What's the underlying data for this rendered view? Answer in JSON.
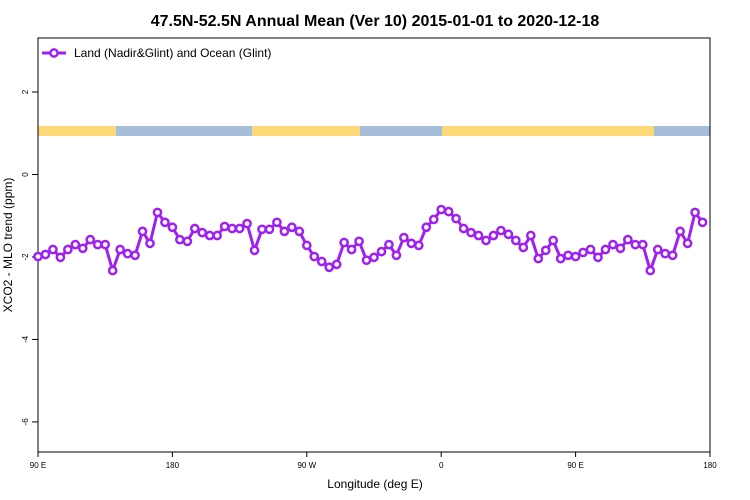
{
  "chart_data": {
    "type": "line",
    "title": "47.5N-52.5N Annual Mean (Ver 10)   2015-01-01 to 2020-12-18",
    "x_label": "Longitude (deg E)",
    "y_label": "XCO2 - MLO trend (ppm)",
    "legend": "top-left",
    "x": [
      90,
      95,
      100,
      105,
      110,
      115,
      120,
      125,
      130,
      135,
      140,
      145,
      150,
      155,
      160,
      165,
      170,
      175,
      180,
      185,
      190,
      195,
      200,
      205,
      210,
      215,
      220,
      225,
      230,
      235,
      240,
      245,
      250,
      255,
      260,
      265,
      270,
      275,
      280,
      285,
      290,
      295,
      300,
      305,
      310,
      315,
      320,
      325,
      330,
      335,
      340,
      345,
      350,
      355,
      360,
      365,
      370,
      375,
      380,
      385,
      390,
      395,
      400,
      405,
      410,
      415,
      420,
      425,
      430,
      435,
      440,
      445,
      450,
      455,
      460,
      465,
      470,
      475,
      480,
      485,
      490,
      495,
      500,
      505,
      510,
      515,
      520,
      525,
      530,
      535
    ],
    "series": [
      {
        "name": "Land (Nadir&Glint) and Ocean (Glint)",
        "color": "#a020f0",
        "values": [
          -1.99,
          -1.94,
          -1.82,
          -2.01,
          -1.82,
          -1.7,
          -1.79,
          -1.58,
          -1.7,
          -1.7,
          -2.33,
          -1.82,
          -1.92,
          -1.96,
          -1.38,
          -1.67,
          -0.92,
          -1.16,
          -1.28,
          -1.58,
          -1.62,
          -1.31,
          -1.41,
          -1.48,
          -1.48,
          -1.26,
          -1.31,
          -1.31,
          -1.19,
          -1.84,
          -1.33,
          -1.33,
          -1.16,
          -1.38,
          -1.28,
          -1.38,
          -1.72,
          -1.99,
          -2.11,
          -2.25,
          -2.18,
          -1.65,
          -1.82,
          -1.62,
          -2.08,
          -2.01,
          -1.87,
          -1.7,
          -1.96,
          -1.53,
          -1.67,
          -1.72,
          -1.28,
          -1.09,
          -0.85,
          -0.9,
          -1.07,
          -1.31,
          -1.41,
          -1.48,
          -1.6,
          -1.48,
          -1.36,
          -1.45,
          -1.6,
          -1.77,
          -1.48,
          -2.04,
          -1.84,
          -1.6,
          -2.04,
          -1.96,
          -1.99,
          -1.89,
          -1.82,
          -2.01,
          -1.82,
          -1.7,
          -1.79,
          -1.58,
          -1.7,
          -1.7,
          -2.33,
          -1.82,
          -1.92,
          -1.96,
          -1.38,
          -1.67,
          -0.92,
          -1.16
        ]
      }
    ],
    "xlim": [
      90,
      540
    ],
    "xticks": [
      {
        "value": 90,
        "label": "90 E"
      },
      180,
      {
        "value": 270,
        "label": "90 W"
      },
      {
        "value": 360,
        "label": "0"
      },
      {
        "value": 450,
        "label": "90 E"
      },
      {
        "value": 540,
        "label": "180"
      }
    ],
    "ylim": [
      -6.73,
      3.31
    ],
    "yticks": [
      2,
      0,
      -2,
      -4,
      -6
    ]
  }
}
